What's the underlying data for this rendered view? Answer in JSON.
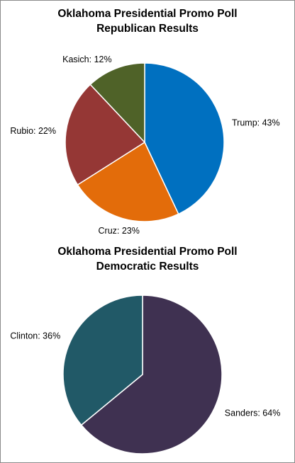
{
  "chart_data": [
    {
      "type": "pie",
      "title": [
        "Oklahoma Presidential Promo Poll",
        "Republican Results"
      ],
      "slices": [
        {
          "label": "Trump",
          "value": 43,
          "text": "Trump: 43%",
          "color": "#0070C0"
        },
        {
          "label": "Cruz",
          "value": 23,
          "text": "Cruz: 23%",
          "color": "#E36C0A"
        },
        {
          "label": "Rubio",
          "value": 22,
          "text": "Rubio: 22%",
          "color": "#953735"
        },
        {
          "label": "Kasich",
          "value": 12,
          "text": "Kasich: 12%",
          "color": "#4F6228"
        }
      ]
    },
    {
      "type": "pie",
      "title": [
        "Oklahoma Presidential Promo Poll",
        "Democratic Results"
      ],
      "slices": [
        {
          "label": "Sanders",
          "value": 64,
          "text": "Sanders: 64%",
          "color": "#3F3151"
        },
        {
          "label": "Clinton",
          "value": 36,
          "text": "Clinton: 36%",
          "color": "#215967"
        }
      ]
    }
  ]
}
